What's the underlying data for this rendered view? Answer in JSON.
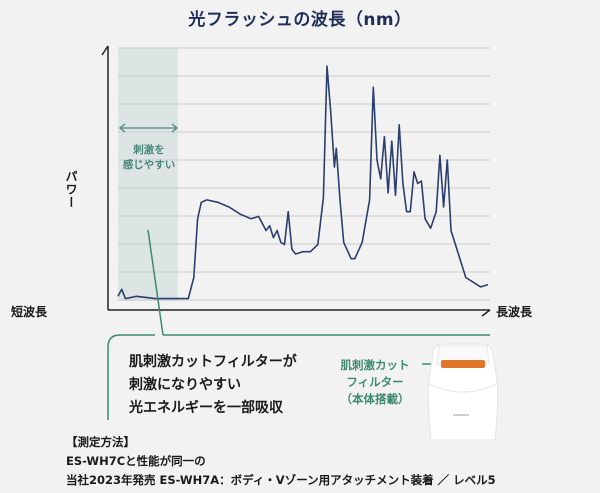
{
  "title": "光フラッシュの波長（nm）",
  "axes": {
    "ylabel": "パワー",
    "xlabel_left": "短波長",
    "xlabel_right": "長波長"
  },
  "region": {
    "label_line1": "刺激を",
    "label_line2": "感じやすい",
    "color": "#4a8a7a"
  },
  "callout": {
    "line1": "肌刺激カットフィルターが",
    "line2": "刺激になりやすい",
    "line3": "光エネルギーを一部吸収"
  },
  "filter": {
    "line1": "肌刺激カット",
    "line2": "フィルター",
    "line3": "（本体搭載）",
    "color": "#3a8a6e"
  },
  "method": {
    "heading": "【測定方法】",
    "line1": "ES-WH7Cと性能が同一の",
    "line2": "当社2023年発売 ES-WH7A：ボディ・Vゾーン用アタッチメント装着 ／ レベル5"
  },
  "colors": {
    "line": "#2a3f6e",
    "green": "#3a8a6e",
    "shade": "#dde4e4",
    "grid": "#cccccc"
  },
  "chart_data": {
    "type": "line",
    "title": "光フラッシュの波長（nm）",
    "xlabel": "短波長 → 長波長",
    "ylabel": "パワー",
    "grid": true,
    "shaded_region": {
      "x_from": 0,
      "x_to": 0.16,
      "label": "刺激を感じやすい"
    },
    "x_range": [
      0,
      1
    ],
    "y_range": [
      0,
      1
    ],
    "series": [
      {
        "name": "光フラッシュ",
        "points": [
          [
            0.0,
            0.02
          ],
          [
            0.01,
            0.05
          ],
          [
            0.02,
            0.01
          ],
          [
            0.05,
            0.02
          ],
          [
            0.1,
            0.01
          ],
          [
            0.15,
            0.01
          ],
          [
            0.19,
            0.01
          ],
          [
            0.205,
            0.1
          ],
          [
            0.215,
            0.35
          ],
          [
            0.225,
            0.42
          ],
          [
            0.24,
            0.43
          ],
          [
            0.27,
            0.42
          ],
          [
            0.3,
            0.4
          ],
          [
            0.33,
            0.37
          ],
          [
            0.36,
            0.35
          ],
          [
            0.38,
            0.36
          ],
          [
            0.39,
            0.33
          ],
          [
            0.4,
            0.3
          ],
          [
            0.41,
            0.32
          ],
          [
            0.42,
            0.27
          ],
          [
            0.43,
            0.3
          ],
          [
            0.44,
            0.25
          ],
          [
            0.45,
            0.24
          ],
          [
            0.46,
            0.38
          ],
          [
            0.47,
            0.22
          ],
          [
            0.48,
            0.2
          ],
          [
            0.5,
            0.21
          ],
          [
            0.52,
            0.21
          ],
          [
            0.54,
            0.24
          ],
          [
            0.555,
            0.44
          ],
          [
            0.565,
            1.0
          ],
          [
            0.575,
            0.8
          ],
          [
            0.585,
            0.57
          ],
          [
            0.59,
            0.65
          ],
          [
            0.6,
            0.43
          ],
          [
            0.61,
            0.25
          ],
          [
            0.63,
            0.18
          ],
          [
            0.64,
            0.18
          ],
          [
            0.66,
            0.25
          ],
          [
            0.68,
            0.43
          ],
          [
            0.69,
            0.91
          ],
          [
            0.7,
            0.6
          ],
          [
            0.71,
            0.52
          ],
          [
            0.72,
            0.7
          ],
          [
            0.73,
            0.46
          ],
          [
            0.74,
            0.68
          ],
          [
            0.75,
            0.45
          ],
          [
            0.76,
            0.75
          ],
          [
            0.77,
            0.5
          ],
          [
            0.78,
            0.38
          ],
          [
            0.79,
            0.38
          ],
          [
            0.8,
            0.55
          ],
          [
            0.81,
            0.5
          ],
          [
            0.82,
            0.51
          ],
          [
            0.83,
            0.35
          ],
          [
            0.845,
            0.31
          ],
          [
            0.86,
            0.38
          ],
          [
            0.87,
            0.62
          ],
          [
            0.88,
            0.4
          ],
          [
            0.89,
            0.6
          ],
          [
            0.9,
            0.3
          ],
          [
            0.92,
            0.2
          ],
          [
            0.94,
            0.1
          ],
          [
            0.96,
            0.08
          ],
          [
            0.98,
            0.06
          ],
          [
            1.0,
            0.07
          ]
        ]
      }
    ]
  }
}
